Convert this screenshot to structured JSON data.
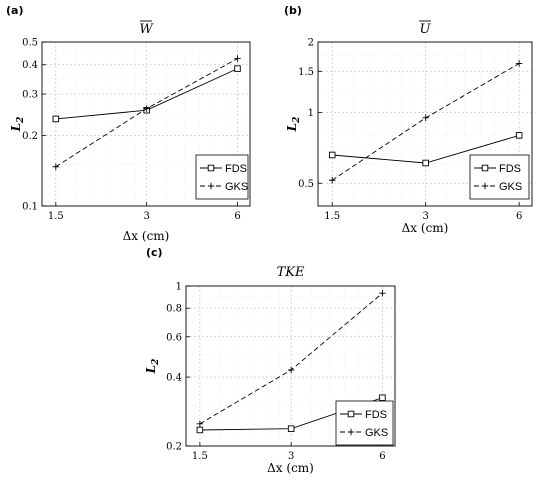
{
  "chart_data": [
    {
      "type": "line",
      "panel_label": "(a)",
      "title": "W",
      "title_overline": true,
      "xlabel": "Δx (cm)",
      "ylabel": "L",
      "ylabel_sub": "2",
      "xscale": "log",
      "yscale": "log",
      "x": [
        1.5,
        3,
        6
      ],
      "xticks": [
        "1.5",
        "3",
        "6"
      ],
      "xlim": [
        1.35,
        6.6
      ],
      "ylim": [
        0.1,
        0.5
      ],
      "yticks": [
        0.1,
        0.2,
        0.3,
        0.4,
        0.5
      ],
      "ytick_labels": [
        "0.1",
        "0.2",
        "0.3",
        "0.4",
        "0.5"
      ],
      "grid": true,
      "legend_position": "bottom-right",
      "series": [
        {
          "name": "FDS",
          "style": "solid",
          "marker": "square",
          "values": [
            0.235,
            0.256,
            0.385
          ]
        },
        {
          "name": "GKS",
          "style": "dashed",
          "marker": "plus",
          "values": [
            0.147,
            0.26,
            0.425
          ]
        }
      ]
    },
    {
      "type": "line",
      "panel_label": "(b)",
      "title": "U",
      "title_overline": true,
      "xlabel": "Δx (cm)",
      "ylabel": "L",
      "ylabel_sub": "2",
      "xscale": "log",
      "yscale": "log",
      "x": [
        1.5,
        3,
        6
      ],
      "xticks": [
        "1.5",
        "3",
        "6"
      ],
      "xlim": [
        1.35,
        6.6
      ],
      "ylim": [
        0.4,
        2
      ],
      "yticks": [
        0.5,
        1,
        1.5,
        2
      ],
      "ytick_labels": [
        "0.5",
        "1",
        "1.5",
        "2"
      ],
      "grid": true,
      "legend_position": "bottom-right",
      "series": [
        {
          "name": "FDS",
          "style": "solid",
          "marker": "square",
          "values": [
            0.66,
            0.61,
            0.8
          ]
        },
        {
          "name": "GKS",
          "style": "dashed",
          "marker": "plus",
          "values": [
            0.515,
            0.95,
            1.62
          ]
        }
      ]
    },
    {
      "type": "line",
      "panel_label": "(c)",
      "title": "TKE",
      "title_overline": false,
      "xlabel": "Δx (cm)",
      "ylabel": "L",
      "ylabel_sub": "2",
      "xscale": "log",
      "yscale": "log",
      "x": [
        1.5,
        3,
        6
      ],
      "xticks": [
        "1.5",
        "3",
        "6"
      ],
      "xlim": [
        1.35,
        6.6
      ],
      "ylim": [
        0.2,
        1
      ],
      "yticks": [
        0.2,
        0.4,
        0.6,
        0.8,
        1
      ],
      "ytick_labels": [
        "0.2",
        "0.4",
        "0.6",
        "0.8",
        "1"
      ],
      "grid": true,
      "legend_position": "bottom-right",
      "series": [
        {
          "name": "FDS",
          "style": "solid",
          "marker": "square",
          "values": [
            0.235,
            0.238,
            0.325
          ]
        },
        {
          "name": "GKS",
          "style": "dashed",
          "marker": "plus",
          "values": [
            0.25,
            0.43,
            0.93
          ]
        }
      ]
    }
  ]
}
